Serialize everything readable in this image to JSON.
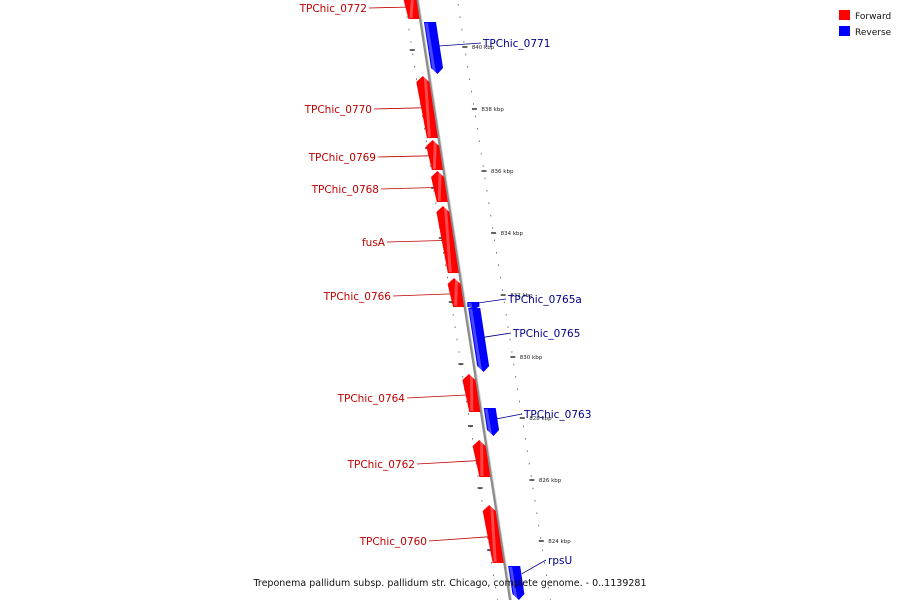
{
  "legend": [
    {
      "label": "Forward",
      "color": "#ff0000"
    },
    {
      "label": "Reverse",
      "color": "#0000ff"
    }
  ],
  "caption": "Treponema pallidum subsp. pallidum str. Chicago, complete genome. - 0..1139281",
  "colors": {
    "forward": "#ff0000",
    "reverse": "#0000ff",
    "forward_label": "#c00000",
    "reverse_label": "#00008b",
    "backbone": "#8c8c8c"
  },
  "tick_labels": [
    "840 kbp",
    "838 kbp",
    "836 kbp",
    "834 kbp",
    "832 kbp",
    "830 kbp",
    "828 kbp",
    "826 kbp",
    "824 kbp"
  ],
  "genes": [
    {
      "name": "TPChic_0772",
      "strand": "forward"
    },
    {
      "name": "TPChic_0771",
      "strand": "reverse"
    },
    {
      "name": "TPChic_0770",
      "strand": "forward"
    },
    {
      "name": "TPChic_0769",
      "strand": "forward"
    },
    {
      "name": "TPChic_0768",
      "strand": "forward"
    },
    {
      "name": "fusA",
      "strand": "forward"
    },
    {
      "name": "TPChic_0766",
      "strand": "forward"
    },
    {
      "name": "TPChic_0765a",
      "strand": "reverse"
    },
    {
      "name": "TPChic_0765",
      "strand": "reverse"
    },
    {
      "name": "TPChic_0764",
      "strand": "forward"
    },
    {
      "name": "TPChic_0763",
      "strand": "reverse"
    },
    {
      "name": "TPChic_0762",
      "strand": "forward"
    },
    {
      "name": "TPChic_0760",
      "strand": "forward"
    },
    {
      "name": "rpsU",
      "strand": "reverse"
    }
  ]
}
